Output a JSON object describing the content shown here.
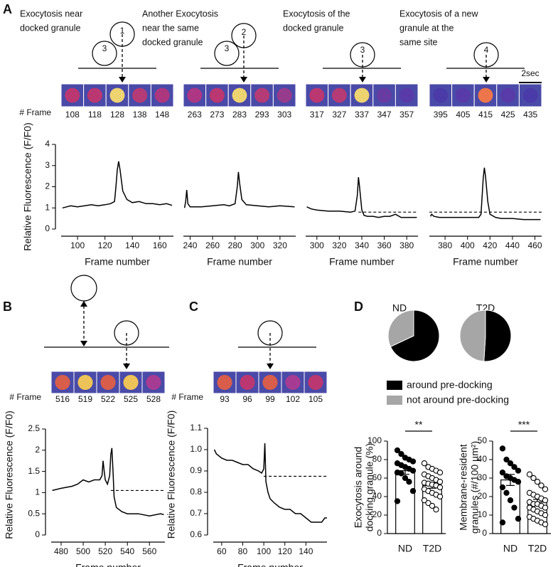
{
  "chart_data": [
    {
      "type": "line",
      "panel": "A",
      "caption": [
        "Exocytosis near",
        "docked granule"
      ],
      "granules": [
        "1",
        "3"
      ],
      "frame_label": "# Frame",
      "frames": [
        108,
        118,
        128,
        138,
        148
      ],
      "tile_colors": [
        "#c8356a",
        "#c8356a",
        "#ffe36a",
        "#c03a70",
        "#b8357a"
      ],
      "ylabel": "Relative Fluorescence (F/F0)",
      "xlabel": "Frame number",
      "xlim": [
        88,
        170
      ],
      "xticks": [
        100,
        120,
        140,
        160
      ],
      "ylim": [
        0,
        4
      ],
      "yticks": [
        0,
        1,
        2,
        3,
        4
      ],
      "color": "#000000",
      "x": [
        89,
        92,
        95,
        100,
        105,
        110,
        115,
        120,
        124,
        127,
        128,
        129,
        130,
        131,
        133,
        136,
        140,
        145,
        150,
        155,
        160,
        165,
        169
      ],
      "values": [
        1.0,
        1.05,
        1.1,
        1.05,
        1.1,
        1.15,
        1.1,
        1.15,
        1.2,
        1.3,
        2.0,
        2.8,
        3.2,
        2.8,
        1.8,
        1.4,
        1.25,
        1.3,
        1.2,
        1.2,
        1.15,
        1.2,
        1.12
      ]
    },
    {
      "type": "line",
      "caption": [
        "Another Exocytosis",
        "near the same",
        "docked granule"
      ],
      "granules": [
        "2",
        "3"
      ],
      "frames": [
        263,
        273,
        283,
        293,
        303
      ],
      "tile_colors": [
        "#b83580",
        "#c8356a",
        "#ffe36a",
        "#c03a70",
        "#a03a8a"
      ],
      "xlabel": "Frame number",
      "xlim": [
        234,
        334
      ],
      "xticks": [
        240,
        260,
        280,
        300,
        320
      ],
      "ylim": [
        0,
        4
      ],
      "color": "#000000",
      "x": [
        235,
        236,
        237,
        238,
        240,
        250,
        260,
        270,
        275,
        280,
        282,
        283,
        284,
        286,
        290,
        300,
        310,
        320,
        333
      ],
      "values": [
        1.0,
        1.3,
        1.85,
        1.2,
        1.05,
        1.05,
        1.1,
        1.15,
        1.1,
        1.2,
        2.0,
        2.7,
        2.2,
        1.4,
        1.15,
        1.1,
        1.05,
        1.1,
        1.05
      ]
    },
    {
      "type": "line",
      "caption": [
        "Exocytosis of the",
        "docked granule"
      ],
      "granules": [
        "3"
      ],
      "frames": [
        317,
        327,
        337,
        347,
        357
      ],
      "tile_colors": [
        "#c8356a",
        "#c03a70",
        "#ffe36a",
        "#6a3aa0",
        "#5a3aa8"
      ],
      "xlabel": "Frame number",
      "xlim": [
        290,
        390
      ],
      "xticks": [
        300,
        320,
        340,
        360,
        380
      ],
      "ylim": [
        0,
        4
      ],
      "color": "#000000",
      "reference_line": {
        "value": 0.8,
        "from": 337
      },
      "x": [
        291,
        295,
        300,
        310,
        320,
        330,
        334,
        336,
        337,
        338,
        340,
        342,
        345,
        350,
        355,
        360,
        365,
        370,
        375,
        380,
        389
      ],
      "values": [
        1.05,
        0.95,
        0.9,
        0.85,
        0.85,
        0.8,
        0.85,
        1.6,
        2.45,
        2.0,
        0.9,
        0.65,
        0.6,
        0.6,
        0.55,
        0.6,
        0.6,
        0.7,
        0.55,
        0.55,
        0.55
      ]
    },
    {
      "type": "line",
      "caption": [
        "Exocytosis of a new",
        "granule at the",
        "same site"
      ],
      "granules": [
        "4"
      ],
      "frames": [
        395,
        405,
        415,
        425,
        435
      ],
      "tile_colors": [
        "#4a3aa8",
        "#5a3aa8",
        "#ff7a40",
        "#5a3aa8",
        "#4a3aa8"
      ],
      "scale_bar": "2sec",
      "xlabel": "Frame number",
      "xlim": [
        366,
        466
      ],
      "xticks": [
        380,
        400,
        420,
        440,
        460
      ],
      "ylim": [
        0,
        4
      ],
      "color": "#000000",
      "reference_line": {
        "value": 0.8,
        "from": 366
      },
      "x": [
        367,
        368,
        370,
        375,
        380,
        390,
        400,
        410,
        412,
        414,
        415,
        416,
        418,
        420,
        425,
        430,
        440,
        450,
        460,
        465
      ],
      "values": [
        0.6,
        0.7,
        0.6,
        0.55,
        0.55,
        0.55,
        0.55,
        0.55,
        0.7,
        2.4,
        2.9,
        2.5,
        1.3,
        0.7,
        0.55,
        0.5,
        0.5,
        0.45,
        0.45,
        0.45
      ]
    },
    {
      "type": "line",
      "panel": "B",
      "frame_label": "# Frame",
      "frames": [
        516,
        519,
        522,
        525,
        528
      ],
      "tile_colors": [
        "#e86040",
        "#ffd050",
        "#e86040",
        "#ffd050",
        "#b03a90"
      ],
      "ylabel": "Relative Fluorescence (F/F0)",
      "xlabel": "Frame number",
      "xlim": [
        471,
        574
      ],
      "xticks": [
        480,
        500,
        520,
        540,
        560
      ],
      "ylim": [
        0,
        2.5
      ],
      "yticks": [
        0,
        0.5,
        1,
        1.5,
        2,
        2.5
      ],
      "color": "#000000",
      "reference_line": {
        "value": 1.05,
        "from": 525
      },
      "x": [
        472,
        480,
        490,
        495,
        500,
        505,
        510,
        515,
        517,
        518,
        519,
        520,
        522,
        524,
        525,
        526,
        527,
        528,
        530,
        535,
        540,
        550,
        560,
        570,
        573
      ],
      "values": [
        1.05,
        1.1,
        1.15,
        1.2,
        1.3,
        1.25,
        1.3,
        1.3,
        1.4,
        1.75,
        1.5,
        1.3,
        1.2,
        1.4,
        1.9,
        2.05,
        1.5,
        0.9,
        0.65,
        0.55,
        0.5,
        0.5,
        0.45,
        0.5,
        0.48
      ]
    },
    {
      "type": "line",
      "panel": "C",
      "frame_label": "# Frame",
      "frames": [
        93,
        96,
        99,
        102,
        105
      ],
      "tile_colors": [
        "#e86040",
        "#c8356a",
        "#e86040",
        "#b03a90",
        "#c8356a"
      ],
      "ylabel": "Relative Fluorescence (F/F0)",
      "xlabel": "Frame number",
      "xlim": [
        52,
        160
      ],
      "xticks": [
        60,
        80,
        100,
        120,
        140
      ],
      "ylim": [
        0.6,
        1.1
      ],
      "yticks": [
        0.6,
        0.7,
        0.8,
        0.9,
        {
          "value": 1,
          "label": "1.0"
        },
        1.1
      ],
      "color": "#000000",
      "reference_line": {
        "value": 0.875,
        "from": 100
      },
      "x": [
        53,
        55,
        60,
        65,
        70,
        75,
        80,
        85,
        90,
        95,
        98,
        100,
        101,
        102,
        104,
        106,
        110,
        115,
        120,
        125,
        130,
        135,
        140,
        145,
        150,
        155,
        158,
        160
      ],
      "values": [
        1.0,
        0.98,
        0.96,
        0.95,
        0.95,
        0.94,
        0.93,
        0.93,
        0.91,
        0.9,
        0.89,
        0.91,
        1.03,
        0.85,
        0.8,
        0.77,
        0.75,
        0.73,
        0.72,
        0.72,
        0.7,
        0.7,
        0.68,
        0.66,
        0.66,
        0.66,
        0.68,
        0.68
      ]
    },
    {
      "type": "pie",
      "panel": "D",
      "title": "ND",
      "categories": [
        "around pre-docking",
        "not around pre-docking"
      ],
      "colors": [
        "#000000",
        "#a6a6a6"
      ],
      "values": [
        68,
        32
      ]
    },
    {
      "type": "pie",
      "title": "T2D",
      "colors": [
        "#000000",
        "#a6a6a6"
      ],
      "values": [
        51,
        49
      ]
    },
    {
      "type": "bar",
      "ylabel": [
        "Exocytosis around",
        "docking granule (%)"
      ],
      "categories": [
        "ND",
        "T2D"
      ],
      "values": [
        68,
        52
      ],
      "errors": [
        4,
        3
      ],
      "significance": "**",
      "ylim": [
        0,
        100
      ],
      "yticks": [
        0,
        20,
        40,
        60,
        80,
        100
      ],
      "color": "#ffffff",
      "points": [
        [
          90,
          86,
          82,
          80,
          78,
          76,
          74,
          72,
          70,
          68,
          66,
          65,
          60,
          56,
          46,
          35
        ],
        [
          76,
          72,
          70,
          68,
          66,
          64,
          62,
          60,
          58,
          56,
          55,
          54,
          53,
          52,
          50,
          48,
          46,
          44,
          42,
          40,
          36,
          33,
          30,
          26
        ]
      ],
      "point_styles": [
        "filled",
        "open"
      ]
    },
    {
      "type": "bar",
      "ylabel": [
        "Membrane-resident",
        "granules (#/100 µm²)"
      ],
      "categories": [
        "ND",
        "T2D"
      ],
      "values": [
        29,
        17
      ],
      "errors": [
        3,
        1.5
      ],
      "significance": "***",
      "ylim": [
        0,
        50
      ],
      "yticks": [
        0,
        10,
        20,
        30,
        40,
        50
      ],
      "color": "#ffffff",
      "points": [
        [
          46,
          40,
          38,
          36,
          34,
          33,
          31,
          30,
          29,
          28,
          25,
          22,
          18,
          14,
          8,
          6
        ],
        [
          32,
          30,
          28,
          26,
          24,
          22,
          21,
          20,
          19,
          18,
          17,
          16,
          16,
          15,
          14,
          14,
          13,
          12,
          11,
          10,
          9,
          8,
          7,
          6,
          5
        ]
      ],
      "point_styles": [
        "filled",
        "open"
      ]
    }
  ]
}
